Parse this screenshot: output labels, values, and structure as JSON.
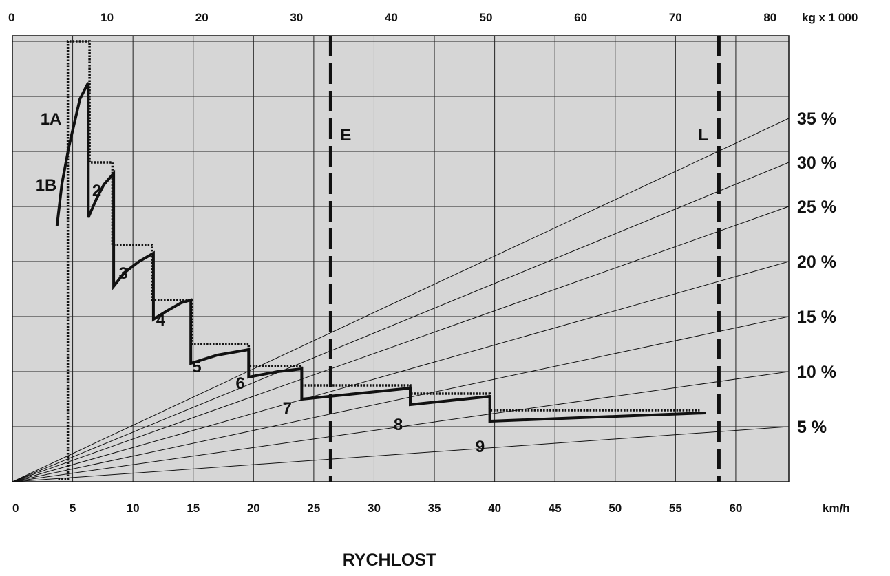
{
  "chart_data": {
    "type": "line",
    "xlabel": "km/h",
    "xlabel_top": "kg x 1 000",
    "title_bottom": "RYCHLOST",
    "xlim": [
      0,
      64.4
    ],
    "ylim": [
      0,
      81
    ],
    "x_ticks": [
      "0",
      "5",
      "10",
      "15",
      "20",
      "25",
      "30",
      "35",
      "40",
      "45",
      "50",
      "55",
      "60"
    ],
    "top_ticks": [
      "0",
      "10",
      "20",
      "30",
      "40",
      "50",
      "60",
      "70",
      "80"
    ],
    "grid": true,
    "background": "#d6d6d6",
    "grade_lines": [
      {
        "label": "5 %",
        "y_end": 10
      },
      {
        "label": "10 %",
        "y_end": 20
      },
      {
        "label": "15 %",
        "y_end": 30
      },
      {
        "label": "20 %",
        "y_end": 40
      },
      {
        "label": "25 %",
        "y_end": 50
      },
      {
        "label": "30 %",
        "y_end": 58
      },
      {
        "label": "35 %",
        "y_end": 66
      }
    ],
    "vertical_markers": [
      {
        "label": "E",
        "x": 26.4
      },
      {
        "label": "L",
        "x": 58.6
      }
    ],
    "series": [
      {
        "style": "solid",
        "points": [
          [
            3.7,
            46.5
          ],
          [
            4.1,
            54
          ],
          [
            4.7,
            61
          ],
          [
            5.6,
            69.5
          ],
          [
            6.3,
            72.5
          ],
          [
            6.3,
            72.5
          ],
          [
            6.3,
            48
          ],
          [
            7.0,
            51.5
          ],
          [
            7.6,
            54
          ],
          [
            8.4,
            56
          ],
          [
            8.4,
            56
          ],
          [
            8.4,
            35.5
          ],
          [
            9.3,
            38
          ],
          [
            10.5,
            40
          ],
          [
            11.7,
            41.5
          ],
          [
            11.7,
            41.5
          ],
          [
            11.7,
            29.5
          ],
          [
            12.8,
            31
          ],
          [
            14.0,
            32.5
          ],
          [
            14.8,
            33
          ],
          [
            14.8,
            33
          ],
          [
            14.8,
            21.5
          ],
          [
            17.0,
            23
          ],
          [
            19.6,
            24
          ],
          [
            19.6,
            24
          ],
          [
            19.6,
            19
          ],
          [
            22.0,
            20
          ],
          [
            24.0,
            20.5
          ],
          [
            24.0,
            20.5
          ],
          [
            24.0,
            15
          ],
          [
            33.0,
            17
          ],
          [
            33.0,
            17
          ],
          [
            33.0,
            14
          ],
          [
            39.6,
            15.5
          ],
          [
            39.6,
            15.5
          ],
          [
            39.6,
            11
          ],
          [
            57.5,
            12.5
          ]
        ]
      },
      {
        "style": "dotted",
        "points": [
          [
            3.8,
            0.5
          ],
          [
            4.6,
            0.5
          ],
          [
            4.6,
            80
          ],
          [
            6.4,
            80
          ],
          [
            6.4,
            58
          ],
          [
            8.3,
            58
          ],
          [
            8.3,
            43
          ],
          [
            11.6,
            43
          ],
          [
            11.6,
            33
          ],
          [
            14.9,
            33
          ],
          [
            14.9,
            25
          ],
          [
            19.6,
            25
          ],
          [
            19.6,
            21
          ],
          [
            24.0,
            21
          ],
          [
            24.0,
            17.5
          ],
          [
            33.0,
            17.5
          ],
          [
            33.0,
            16
          ],
          [
            39.6,
            16
          ],
          [
            39.6,
            13
          ],
          [
            57.0,
            13
          ]
        ]
      }
    ],
    "gear_labels": [
      {
        "label": "1A",
        "x": 3.2,
        "y": 66
      },
      {
        "label": "1B",
        "x": 2.8,
        "y": 54
      },
      {
        "label": "2",
        "x": 7.0,
        "y": 53
      },
      {
        "label": "3",
        "x": 9.2,
        "y": 38
      },
      {
        "label": "4",
        "x": 12.3,
        "y": 29.5
      },
      {
        "label": "5",
        "x": 15.3,
        "y": 21
      },
      {
        "label": "6",
        "x": 18.9,
        "y": 18
      },
      {
        "label": "7",
        "x": 22.8,
        "y": 13.5
      },
      {
        "label": "8",
        "x": 32.0,
        "y": 10.5
      },
      {
        "label": "9",
        "x": 38.8,
        "y": 6.5
      }
    ]
  }
}
